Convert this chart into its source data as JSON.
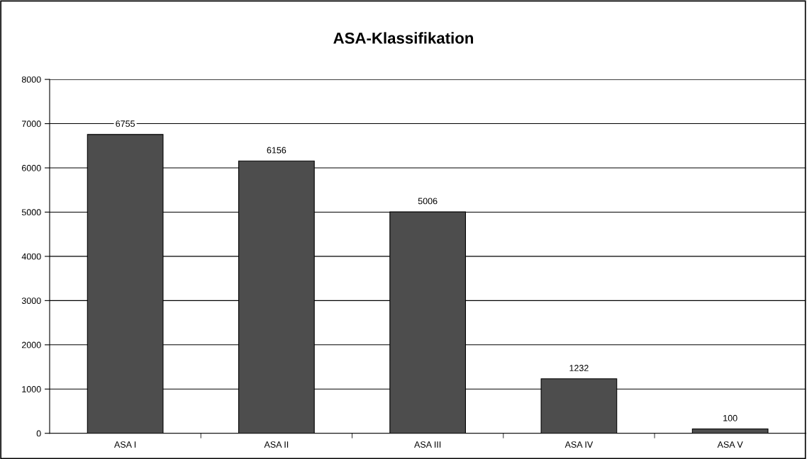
{
  "chart_data": {
    "type": "bar",
    "title": "ASA-Klassifikation",
    "categories": [
      "ASA I",
      "ASA II",
      "ASA III",
      "ASA IV",
      "ASA V"
    ],
    "values": [
      6755,
      6156,
      5006,
      1232,
      100
    ],
    "color": "#4d4d4d",
    "ylim": [
      0,
      8000
    ],
    "yticks": [
      0,
      1000,
      2000,
      3000,
      4000,
      5000,
      6000,
      7000,
      8000
    ],
    "grid": "y",
    "data_labels": true,
    "legend": false
  }
}
